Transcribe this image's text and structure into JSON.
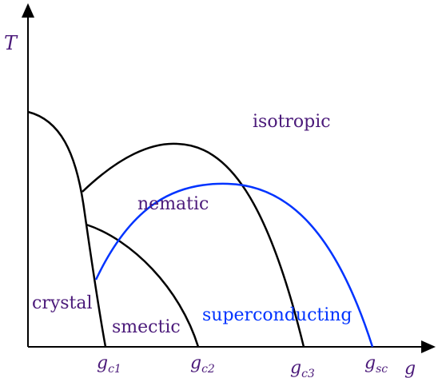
{
  "axes": {
    "y_label": "T",
    "x_label": "g"
  },
  "regions": {
    "isotropic": "isotropic",
    "nematic": "nematic",
    "crystal": "crystal",
    "smectic": "smectic",
    "superconducting": "superconducting"
  },
  "ticks": [
    {
      "base": "g",
      "sub": "c1"
    },
    {
      "base": "g",
      "sub": "c2"
    },
    {
      "base": "g",
      "sub": "c3"
    },
    {
      "base": "g",
      "sub": "sc"
    }
  ],
  "colors": {
    "axis": "#000000",
    "phase_boundary": "#000000",
    "superconducting_boundary": "#0033ff",
    "label_text": "#4b1a7a"
  }
}
